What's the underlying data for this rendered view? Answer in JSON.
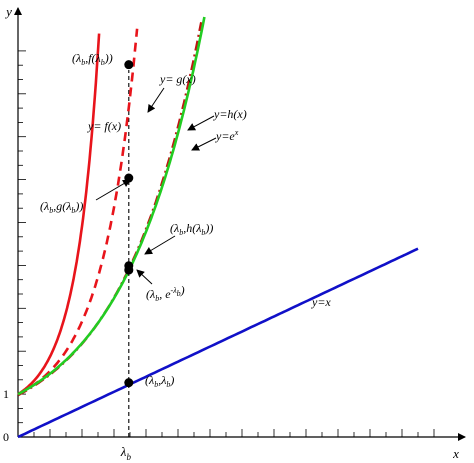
{
  "chart_data": {
    "type": "line",
    "title": "",
    "xlabel": "x",
    "ylabel": "y",
    "xlim": [
      0,
      10.5
    ],
    "ylim": [
      0,
      10
    ],
    "grid": false,
    "y_tick_labels": [
      {
        "value": 0,
        "text": "0"
      },
      {
        "value": 1,
        "text": "1"
      }
    ],
    "x_tick_labels": [
      {
        "value": 2.77,
        "text": "λb"
      }
    ],
    "lambda_b": 2.77,
    "series": [
      {
        "name": "y=f(x)",
        "color": "#e8141b",
        "style": "solid",
        "fn": "f",
        "x": [
          0,
          1,
          2,
          2.77,
          3.2
        ],
        "y": [
          1,
          2.2,
          5.1,
          8.7,
          11.8
        ]
      },
      {
        "name": "y= g(x)",
        "color": "#e8141b",
        "style": "dashed",
        "fn": "g",
        "x": [
          0,
          1,
          2,
          2.77,
          3.2,
          3.8
        ],
        "y": [
          1,
          1.95,
          3.9,
          6.05,
          7.8,
          11.0
        ]
      },
      {
        "name": "y=h(x)",
        "color": "#c01414",
        "style": "dashdot",
        "fn": "h",
        "x": [
          0,
          1,
          2,
          2.77,
          4,
          4.7
        ],
        "y": [
          1,
          1.75,
          2.95,
          4.0,
          7.2,
          10.0
        ]
      },
      {
        "name": "y=e^x",
        "color": "#22cc22",
        "style": "solid",
        "fn": "e",
        "x": [
          0,
          1,
          2,
          2.77,
          4,
          4.7
        ],
        "y": [
          1,
          1.7,
          2.85,
          3.9,
          7.1,
          9.9
        ]
      },
      {
        "name": "y=x",
        "color": "#1010c8",
        "style": "solid",
        "fn": "lin",
        "x": [
          0,
          10
        ],
        "y": [
          0,
          4.4
        ]
      }
    ],
    "points": [
      {
        "name": "f-point",
        "x": 2.77,
        "y": 8.7,
        "label": "(λb,f(λb))"
      },
      {
        "name": "g-point",
        "x": 2.77,
        "y": 6.05,
        "label": "(λb,g(λb))"
      },
      {
        "name": "h-point",
        "x": 2.77,
        "y": 4.0,
        "label": "(λb,h(λb))"
      },
      {
        "name": "e-point",
        "x": 2.77,
        "y": 3.9,
        "label": "(λb, e^λb)"
      },
      {
        "name": "x-point",
        "x": 2.77,
        "y": 1.27,
        "label": "(λb,λb)"
      }
    ],
    "annotations": [
      "y= f(x)",
      "y= g(x)",
      "y=h(x)",
      "y=e^x",
      "y=x"
    ]
  }
}
